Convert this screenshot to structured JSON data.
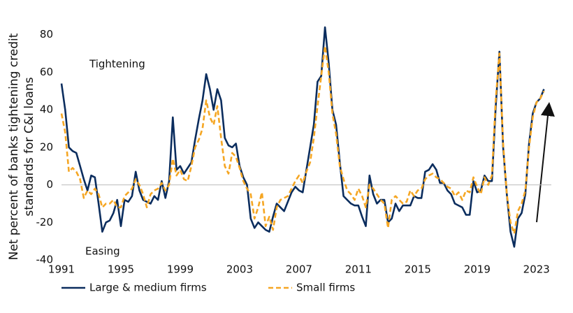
{
  "chart_data": {
    "type": "line",
    "ylabel": [
      "Net percent of banks tightening credit",
      "standards for C&I loans"
    ],
    "annotations": [
      "Tightening",
      "Easing"
    ],
    "x": [
      1991,
      1991.25,
      1991.5,
      1991.75,
      1992,
      1992.25,
      1992.5,
      1992.75,
      1993,
      1993.25,
      1993.5,
      1993.75,
      1994,
      1994.25,
      1994.5,
      1994.75,
      1995,
      1995.25,
      1995.5,
      1995.75,
      1996,
      1996.25,
      1996.5,
      1996.75,
      1997,
      1997.25,
      1997.5,
      1997.75,
      1998,
      1998.25,
      1998.5,
      1998.75,
      1999,
      1999.25,
      1999.5,
      1999.75,
      2000,
      2000.25,
      2000.5,
      2000.75,
      2001,
      2001.25,
      2001.5,
      2001.75,
      2002,
      2002.25,
      2002.5,
      2002.75,
      2003,
      2003.25,
      2003.5,
      2003.75,
      2004,
      2004.25,
      2004.5,
      2004.75,
      2005,
      2005.25,
      2005.5,
      2005.75,
      2006,
      2006.25,
      2006.5,
      2006.75,
      2007,
      2007.25,
      2007.5,
      2007.75,
      2008,
      2008.25,
      2008.5,
      2008.75,
      2009,
      2009.25,
      2009.5,
      2009.75,
      2010,
      2010.25,
      2010.5,
      2010.75,
      2011,
      2011.25,
      2011.5,
      2011.75,
      2012,
      2012.25,
      2012.5,
      2012.75,
      2013,
      2013.25,
      2013.5,
      2013.75,
      2014,
      2014.25,
      2014.5,
      2014.75,
      2015,
      2015.25,
      2015.5,
      2015.75,
      2016,
      2016.25,
      2016.5,
      2016.75,
      2017,
      2017.25,
      2017.5,
      2017.75,
      2018,
      2018.25,
      2018.5,
      2018.75,
      2019,
      2019.25,
      2019.5,
      2019.75,
      2020,
      2020.25,
      2020.5,
      2020.75,
      2021,
      2021.25,
      2021.5,
      2021.75,
      2022,
      2022.25,
      2022.5,
      2022.75,
      2023,
      2023.25,
      2023.5
    ],
    "series": [
      {
        "name": "Large & medium firms",
        "color": "#0b2d5e",
        "dash": false,
        "values": [
          54,
          40,
          20,
          18,
          17,
          10,
          3,
          -3,
          5,
          4,
          -10,
          -25,
          -20,
          -19,
          -15,
          -8,
          -22,
          -8,
          -9,
          -6,
          7,
          -3,
          -8,
          -9,
          -10,
          -6,
          -8,
          2,
          -7,
          2,
          36,
          8,
          10,
          6,
          9,
          12,
          24,
          35,
          45,
          59,
          51,
          40,
          51,
          45,
          25,
          21,
          20,
          22,
          10,
          4,
          0,
          -18,
          -23,
          -20,
          -22,
          -24,
          -25,
          -17,
          -10,
          -12,
          -14,
          -9,
          -4,
          -1,
          -3,
          -4,
          8,
          20,
          32,
          55,
          58,
          84,
          65,
          40,
          32,
          12,
          -6,
          -8,
          -10,
          -11,
          -11,
          -17,
          -22,
          5,
          -5,
          -10,
          -8,
          -8,
          -20,
          -18,
          -10,
          -14,
          -11,
          -11,
          -11,
          -6,
          -7,
          -7,
          7,
          8,
          11,
          8,
          1,
          1,
          -3,
          -5,
          -10,
          -11,
          -12,
          -16,
          -16,
          2,
          -4,
          -3,
          5,
          2,
          2,
          41,
          71,
          20,
          -5,
          -25,
          -33,
          -18,
          -15,
          -5,
          22,
          38,
          44,
          46,
          51
        ]
      },
      {
        "name": "Small firms",
        "color": "#f5a623",
        "dash": true,
        "values": [
          38,
          28,
          7,
          9,
          7,
          3,
          -7,
          -3,
          -5,
          -2,
          -5,
          -12,
          -10,
          -10,
          -8,
          -12,
          -12,
          -6,
          -4,
          -2,
          3,
          0,
          -5,
          -12,
          -5,
          -3,
          -2,
          1,
          -3,
          0,
          14,
          5,
          8,
          3,
          2,
          10,
          20,
          24,
          30,
          45,
          36,
          32,
          42,
          25,
          10,
          6,
          17,
          15,
          9,
          2,
          -2,
          -5,
          -18,
          -12,
          -4,
          -22,
          -17,
          -24,
          -12,
          -8,
          -7,
          -6,
          -2,
          2,
          5,
          1,
          7,
          12,
          25,
          42,
          58,
          74,
          60,
          38,
          27,
          10,
          3,
          -3,
          -5,
          -8,
          -2,
          -6,
          -12,
          0,
          -2,
          -5,
          -8,
          -10,
          -23,
          -8,
          -6,
          -8,
          -10,
          -9,
          -3,
          -6,
          -3,
          -2,
          3,
          5,
          6,
          4,
          3,
          1,
          -1,
          -2,
          -6,
          -4,
          -8,
          -3,
          -4,
          4,
          -1,
          -5,
          4,
          0,
          5,
          45,
          70,
          22,
          -5,
          -20,
          -26,
          -14,
          -10,
          -3,
          20,
          36,
          44,
          46,
          50
        ]
      }
    ],
    "xlim": [
      1991,
      2024
    ],
    "xticks": [
      1991,
      1995,
      1999,
      2003,
      2007,
      2011,
      2015,
      2019,
      2023
    ],
    "ylim": [
      -40,
      84
    ],
    "yticks": [
      -40,
      -20,
      0,
      20,
      40,
      60,
      80
    ],
    "zero_line": true
  }
}
